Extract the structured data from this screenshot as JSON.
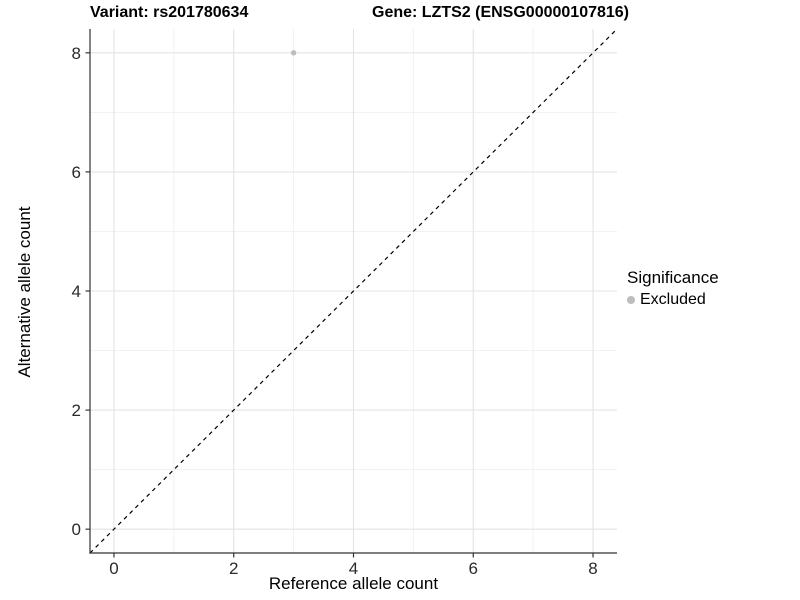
{
  "titles": {
    "variant": "Variant: rs201780634",
    "gene": "Gene: LZTS2 (ENSG00000107816)"
  },
  "legend": {
    "title": "Significance",
    "items": [
      {
        "label": "Excluded",
        "color": "#bdbdbd"
      }
    ]
  },
  "chart_data": {
    "type": "scatter",
    "title": "Variant: rs201780634 | Gene: LZTS2 (ENSG00000107816)",
    "xlabel": "Reference allele count",
    "ylabel": "Alternative allele count",
    "xlim": [
      -0.4,
      8.4
    ],
    "ylim": [
      -0.4,
      8.4
    ],
    "x_ticks": [
      0,
      2,
      4,
      6,
      8
    ],
    "y_ticks": [
      0,
      2,
      4,
      6,
      8
    ],
    "x_minor_ticks": [
      1,
      3,
      5,
      7
    ],
    "y_minor_ticks": [
      1,
      3,
      5,
      7
    ],
    "grid": true,
    "legend_position": "right",
    "series": [
      {
        "name": "Excluded",
        "color": "#bdbdbd",
        "points": [
          {
            "x": 3,
            "y": 8
          }
        ]
      }
    ],
    "reference_line": {
      "kind": "identity",
      "from": [
        -0.4,
        -0.4
      ],
      "to": [
        8.4,
        8.4
      ],
      "style": "dashed",
      "color": "#000000"
    }
  },
  "style_colors": {
    "grid_major": "#e3e3e3",
    "grid_minor": "#f0f0f0",
    "axis_line": "#333333",
    "tick_label": "#2b2b2b",
    "point": "#bdbdbd"
  }
}
